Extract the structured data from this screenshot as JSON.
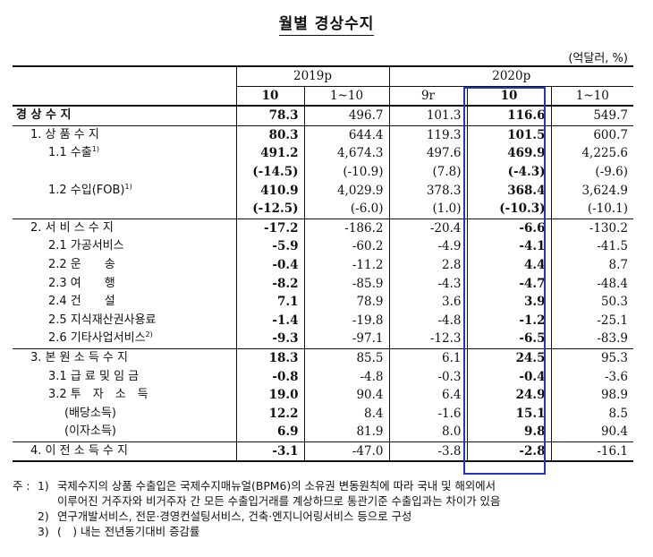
{
  "title": "월별 경상수지",
  "unit": "(억달러, %)",
  "header": {
    "year_2019": "2019p",
    "year_2020": "2020p",
    "cols": [
      "10",
      "1~10",
      "9r",
      "10",
      "1~10"
    ]
  },
  "rows": [
    {
      "label": "경 상 수 지",
      "sup": "",
      "values": [
        "78.3",
        "496.7",
        "101.3",
        "116.6",
        "549.7"
      ]
    },
    {
      "label": "1. 상 품 수 지",
      "sup": "",
      "values": [
        "80.3",
        "644.4",
        "119.3",
        "101.5",
        "600.7"
      ]
    },
    {
      "label": "1.1 수출",
      "sup": "1)",
      "values": [
        "491.2",
        "4,674.3",
        "497.6",
        "469.9",
        "4,225.6"
      ]
    },
    {
      "label": "",
      "sup": "",
      "values": [
        "(-14.5)",
        "(-10.9)",
        "(7.8)",
        "(-4.3)",
        "(-9.6)"
      ]
    },
    {
      "label": "1.2 수입(FOB)",
      "sup": "1)",
      "values": [
        "410.9",
        "4,029.9",
        "378.3",
        "368.4",
        "3,624.9"
      ]
    },
    {
      "label": "",
      "sup": "",
      "values": [
        "(-12.5)",
        "(-6.0)",
        "(1.0)",
        "(-10.3)",
        "(-10.1)"
      ]
    },
    {
      "label": "2. 서 비 스 수 지",
      "sup": "",
      "values": [
        "-17.2",
        "-186.2",
        "-20.4",
        "-6.6",
        "-130.2"
      ]
    },
    {
      "label": "2.1 가공서비스",
      "sup": "",
      "values": [
        "-5.9",
        "-60.2",
        "-4.9",
        "-4.1",
        "-41.5"
      ]
    },
    {
      "label": "2.2 운　　송",
      "sup": "",
      "values": [
        "-0.4",
        "-11.2",
        "2.8",
        "4.4",
        "8.7"
      ]
    },
    {
      "label": "2.3 여　　행",
      "sup": "",
      "values": [
        "-8.2",
        "-85.9",
        "-4.3",
        "-4.7",
        "-48.4"
      ]
    },
    {
      "label": "2.4 건　　설",
      "sup": "",
      "values": [
        "7.1",
        "78.9",
        "3.6",
        "3.9",
        "50.3"
      ]
    },
    {
      "label": "2.5 지식재산권사용료",
      "sup": "",
      "values": [
        "-1.4",
        "-19.8",
        "-4.8",
        "-1.2",
        "-25.1"
      ]
    },
    {
      "label": "2.6 기타사업서비스",
      "sup": "2)",
      "values": [
        "-9.3",
        "-97.1",
        "-12.3",
        "-6.5",
        "-83.9"
      ]
    },
    {
      "label": "3. 본 원 소 득 수 지",
      "sup": "",
      "values": [
        "18.3",
        "85.5",
        "6.1",
        "24.5",
        "95.3"
      ]
    },
    {
      "label": "3.1 급 료 및 임 금",
      "sup": "",
      "values": [
        "-0.8",
        "-4.8",
        "-0.3",
        "-0.4",
        "-3.6"
      ]
    },
    {
      "label": "3.2 투　자　소　득",
      "sup": "",
      "values": [
        "19.0",
        "90.4",
        "6.4",
        "24.9",
        "98.9"
      ]
    },
    {
      "label": "(배당소득)",
      "sup": "",
      "values": [
        "12.2",
        "8.4",
        "-1.6",
        "15.1",
        "8.5"
      ]
    },
    {
      "label": "(이자소득)",
      "sup": "",
      "values": [
        "6.9",
        "81.9",
        "8.0",
        "9.8",
        "90.4"
      ]
    },
    {
      "label": "4. 이 전 소 득 수 지",
      "sup": "",
      "values": [
        "-3.1",
        "-47.0",
        "-3.8",
        "-2.8",
        "-16.1"
      ]
    }
  ],
  "notes": {
    "mark": "주 :",
    "items": [
      {
        "num": "1)",
        "text": "국제수지의 상품 수출입은 국제수지매뉴얼(BPM6)의 소유권 변동원칙에 따라 국내 및 해외에서",
        "cont": "이루어진 거주자와 비거주자 간 모든 수출입거래를 계상하므로 통관기준 수출입과는 차이가 있음"
      },
      {
        "num": "2)",
        "text": "연구개발서비스, 전문·경영컨설팅서비스, 건축·엔지니어링서비스 등으로 구성",
        "cont": ""
      },
      {
        "num": "3)",
        "text": "(　) 내는 전년동기대비 증감률",
        "cont": ""
      }
    ]
  }
}
